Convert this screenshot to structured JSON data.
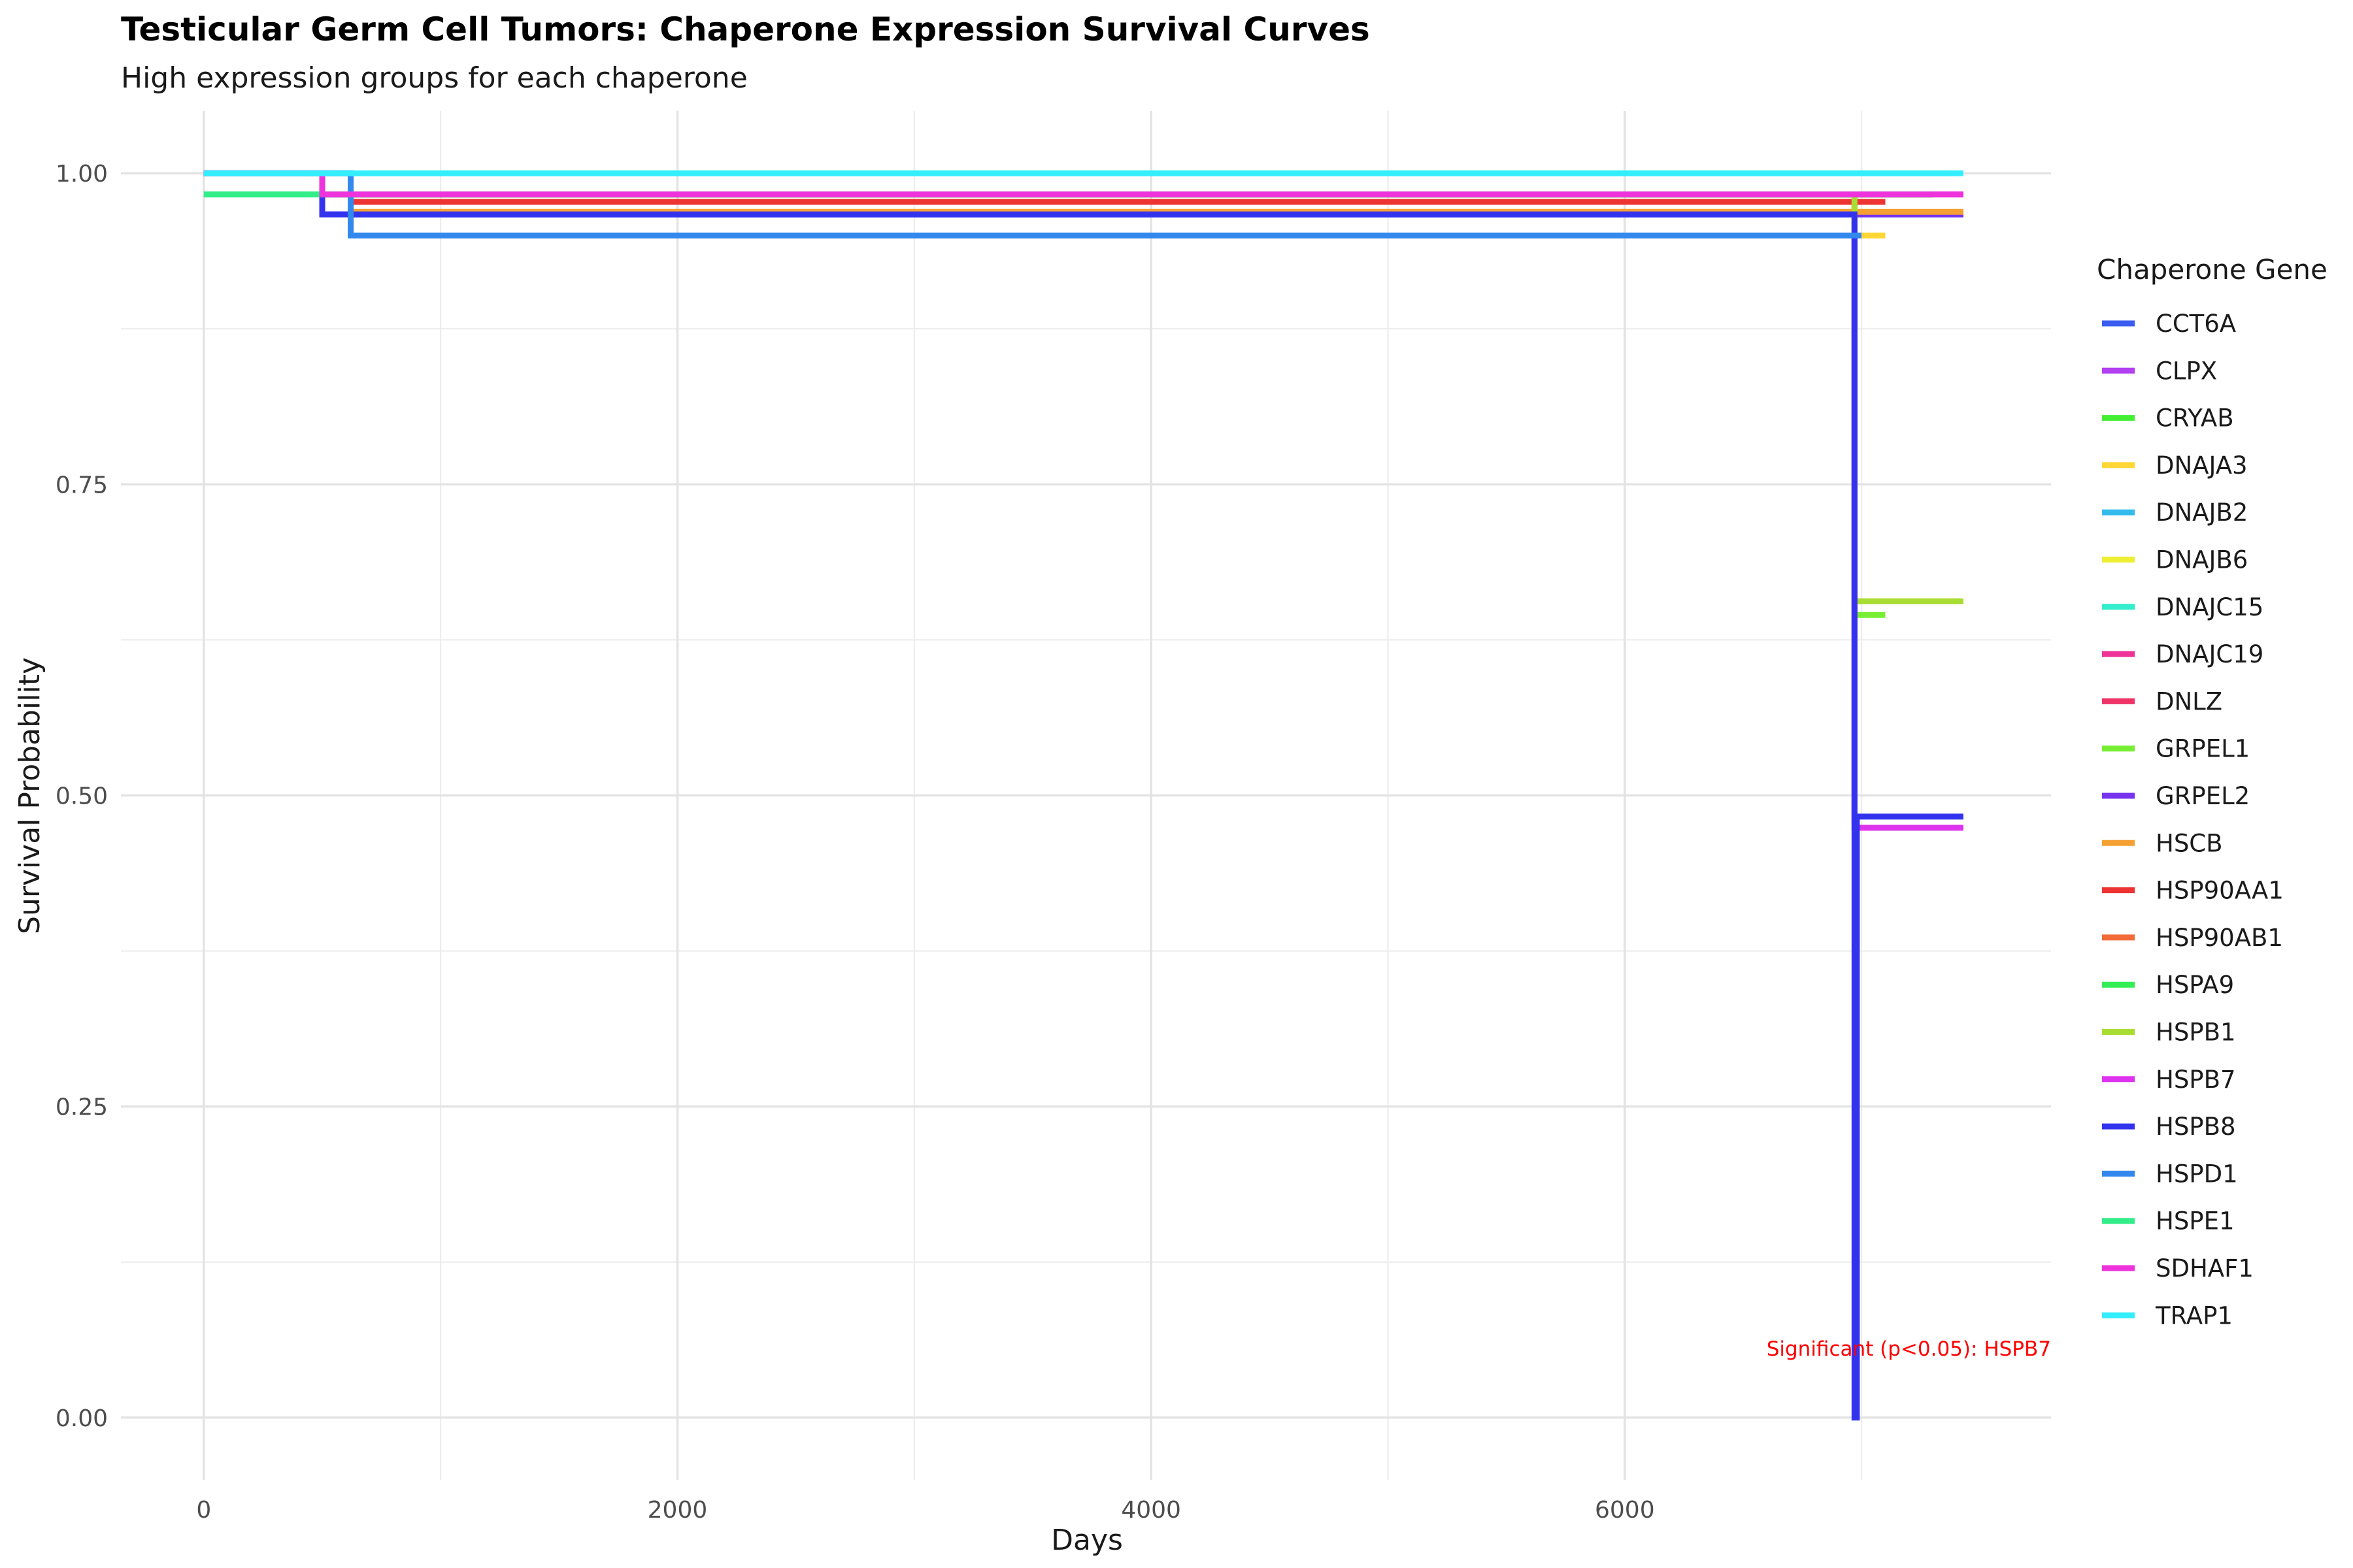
{
  "chart_data": {
    "type": "line",
    "step": true,
    "title": "Testicular Germ Cell Tumors: Chaperone Expression Survival Curves",
    "subtitle": "High expression groups for each chaperone",
    "xlabel": "Days",
    "ylabel": "Survival Probability",
    "xlim": [
      -350,
      7800
    ],
    "ylim": [
      -0.05,
      1.05
    ],
    "x_ticks": [
      0,
      2000,
      4000,
      6000
    ],
    "x_tick_labels": [
      "0",
      "2000",
      "4000",
      "6000"
    ],
    "y_ticks": [
      0,
      0.25,
      0.5,
      0.75,
      1.0
    ],
    "y_tick_labels": [
      "0.00",
      "0.25",
      "0.50",
      "0.75",
      "1.00"
    ],
    "grid": true,
    "legend_title": "Chaperone Gene",
    "legend_position": "right",
    "annotation": "Significant (p<0.05): HSPB7",
    "series": [
      {
        "name": "CCT6A",
        "color": "#3a5cf0",
        "points": [
          [
            0,
            1.0
          ],
          [
            500,
            0.967
          ],
          [
            7430,
            0.967
          ]
        ]
      },
      {
        "name": "CLPX",
        "color": "#b23ff0",
        "points": [
          [
            0,
            1.0
          ],
          [
            500,
            0.983
          ],
          [
            7300,
            0.983
          ]
        ]
      },
      {
        "name": "CRYAB",
        "color": "#44ee33",
        "points": [
          [
            0,
            1.0
          ],
          [
            620,
            0.983
          ],
          [
            7300,
            0.983
          ]
        ]
      },
      {
        "name": "DNAJA3",
        "color": "#ffd633",
        "points": [
          [
            0,
            1.0
          ],
          [
            500,
            0.983
          ],
          [
            6970,
            0.95
          ],
          [
            7100,
            0.95
          ]
        ]
      },
      {
        "name": "DNAJB2",
        "color": "#33bbee",
        "points": [
          [
            0,
            1.0
          ],
          [
            620,
            0.967
          ],
          [
            7430,
            0.967
          ]
        ]
      },
      {
        "name": "DNAJB6",
        "color": "#eeee33",
        "points": [
          [
            0,
            1.0
          ],
          [
            620,
            0.983
          ],
          [
            7300,
            0.983
          ]
        ]
      },
      {
        "name": "DNAJC15",
        "color": "#33eecc",
        "points": [
          [
            0,
            0.983
          ],
          [
            620,
            0.983
          ],
          [
            7300,
            0.983
          ]
        ]
      },
      {
        "name": "DNAJC19",
        "color": "#ee3399",
        "points": [
          [
            0,
            1.0
          ],
          [
            500,
            0.983
          ],
          [
            7430,
            0.983
          ]
        ]
      },
      {
        "name": "DNLZ",
        "color": "#ee3366",
        "points": [
          [
            0,
            1.0
          ],
          [
            620,
            0.977
          ],
          [
            7100,
            0.977
          ]
        ]
      },
      {
        "name": "GRPEL1",
        "color": "#77ee33",
        "points": [
          [
            0,
            1.0
          ],
          [
            620,
            0.983
          ],
          [
            6970,
            0.645
          ],
          [
            7100,
            0.645
          ]
        ]
      },
      {
        "name": "GRPEL2",
        "color": "#7733ee",
        "points": [
          [
            0,
            1.0
          ],
          [
            620,
            0.967
          ],
          [
            7430,
            0.967
          ]
        ]
      },
      {
        "name": "HSCB",
        "color": "#f5a033",
        "points": [
          [
            0,
            1.0
          ],
          [
            620,
            0.969
          ],
          [
            7430,
            0.969
          ]
        ]
      },
      {
        "name": "HSP90AA1",
        "color": "#ee3333",
        "points": [
          [
            0,
            1.0
          ],
          [
            620,
            0.977
          ],
          [
            7100,
            0.977
          ]
        ]
      },
      {
        "name": "HSP90AB1",
        "color": "#f26b38",
        "points": [
          [
            0,
            1.0
          ],
          [
            620,
            0.983
          ],
          [
            7300,
            0.983
          ]
        ]
      },
      {
        "name": "HSPA9",
        "color": "#33ee55",
        "points": [
          [
            0,
            1.0
          ],
          [
            620,
            0.983
          ],
          [
            7300,
            0.983
          ]
        ]
      },
      {
        "name": "HSPB1",
        "color": "#aadd33",
        "points": [
          [
            0,
            1.0
          ],
          [
            620,
            0.983
          ],
          [
            6970,
            0.656
          ],
          [
            7430,
            0.656
          ]
        ]
      },
      {
        "name": "HSPB7",
        "color": "#dd33ee",
        "points": [
          [
            0,
            1.0
          ],
          [
            620,
            0.95
          ],
          [
            6970,
            0.474
          ],
          [
            7430,
            0.474
          ]
        ]
      },
      {
        "name": "HSPB8",
        "color": "#3333ee",
        "points": [
          [
            0,
            1.0
          ],
          [
            500,
            0.967
          ],
          [
            6970,
            0.0
          ],
          [
            6980,
            0.483
          ],
          [
            7430,
            0.483
          ]
        ]
      },
      {
        "name": "HSPD1",
        "color": "#3388ee",
        "points": [
          [
            0,
            1.0
          ],
          [
            620,
            0.95
          ],
          [
            7000,
            0.95
          ]
        ]
      },
      {
        "name": "HSPE1",
        "color": "#33ee88",
        "points": [
          [
            0,
            0.983
          ],
          [
            620,
            0.983
          ],
          [
            7300,
            0.983
          ]
        ]
      },
      {
        "name": "SDHAF1",
        "color": "#ee33dd",
        "points": [
          [
            0,
            1.0
          ],
          [
            500,
            0.983
          ],
          [
            7430,
            0.983
          ]
        ]
      },
      {
        "name": "TRAP1",
        "color": "#33eeff",
        "points": [
          [
            0,
            1.0
          ],
          [
            7430,
            1.0
          ]
        ]
      }
    ]
  }
}
